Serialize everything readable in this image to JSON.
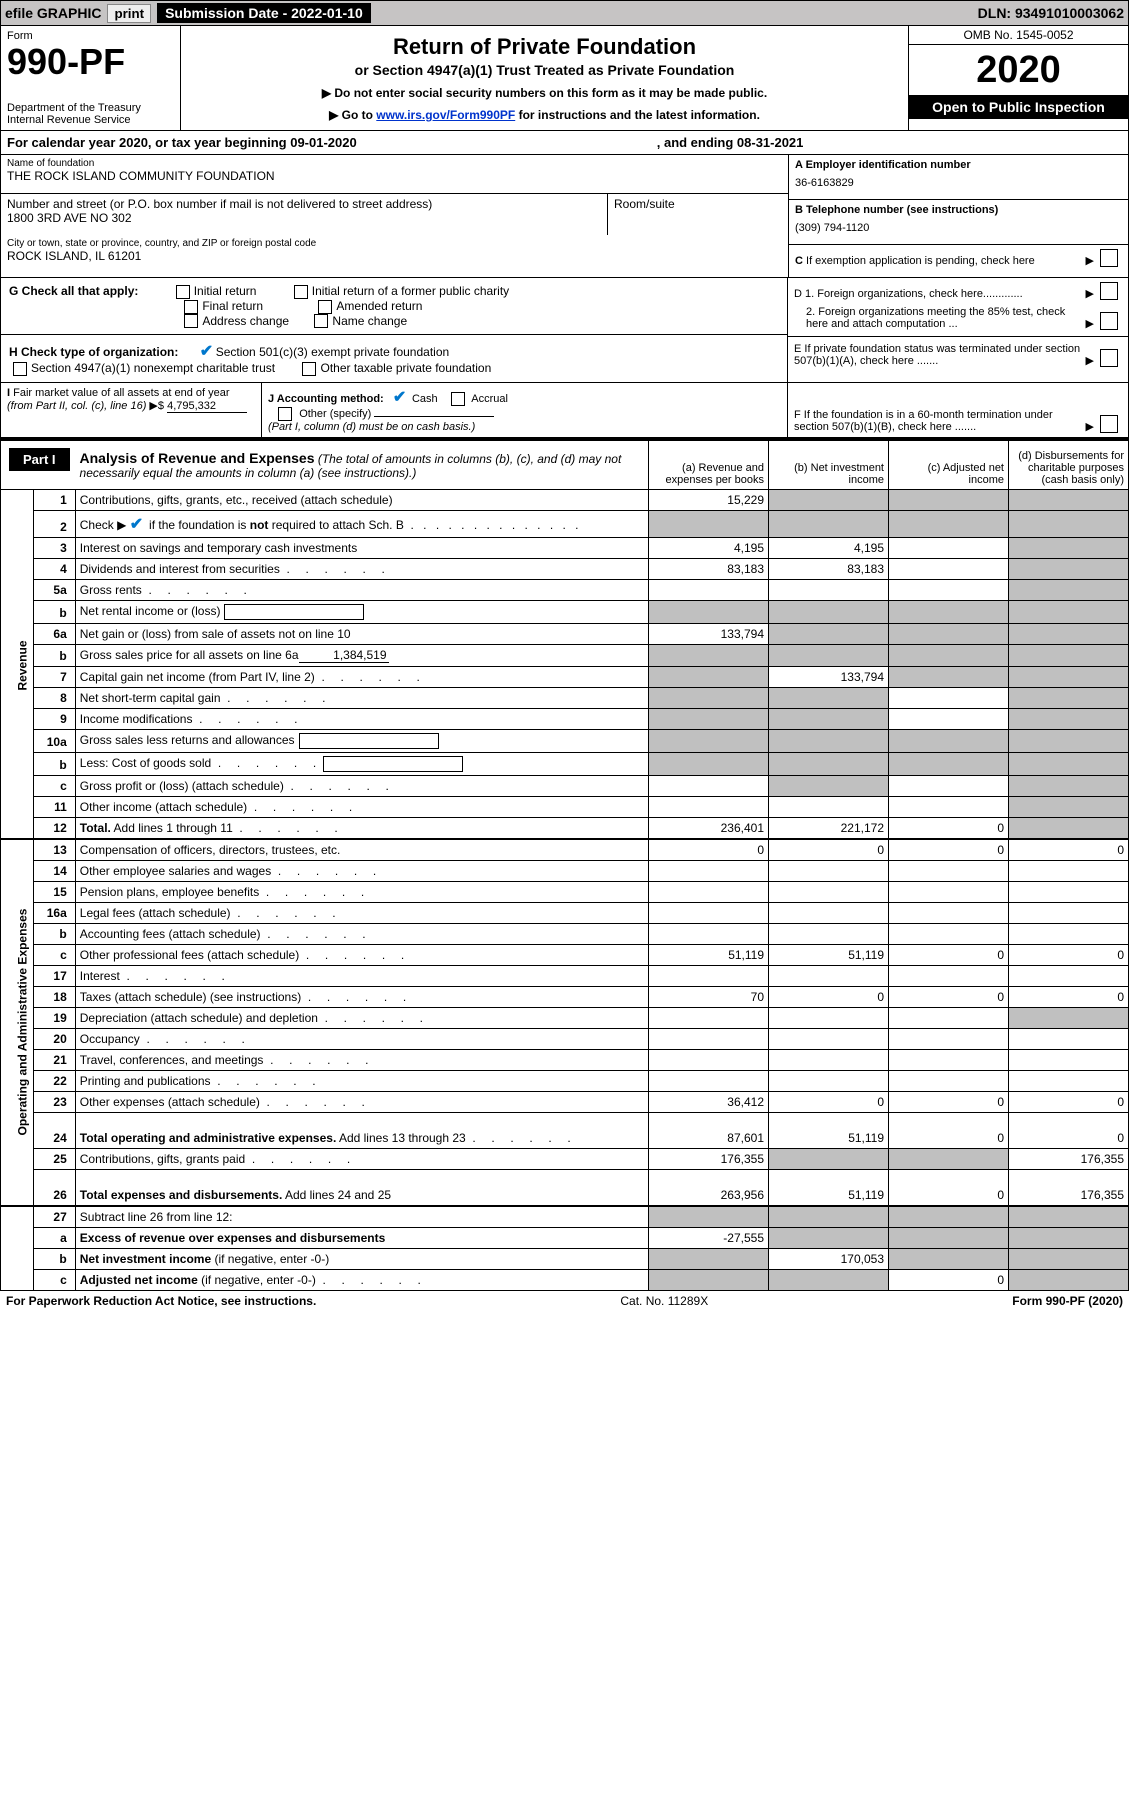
{
  "topbar": {
    "efile": "efile GRAPHIC",
    "print": "print",
    "submission": "Submission Date - 2022-01-10",
    "dln": "DLN: 93491010003062"
  },
  "header": {
    "form_label": "Form",
    "form_number": "990-PF",
    "dept": "Department of the Treasury\nInternal Revenue Service",
    "title": "Return of Private Foundation",
    "subtitle": "or Section 4947(a)(1) Trust Treated as Private Foundation",
    "instr1": "▶ Do not enter social security numbers on this form as it may be made public.",
    "instr2_pre": "▶ Go to ",
    "instr2_link": "www.irs.gov/Form990PF",
    "instr2_post": " for instructions and the latest information.",
    "omb": "OMB No. 1545-0052",
    "year": "2020",
    "open": "Open to Public Inspection"
  },
  "calyear": {
    "text1": "For calendar year 2020, or tax year beginning 09-01-2020",
    "text2": ", and ending 08-31-2021"
  },
  "identity": {
    "name_label": "Name of foundation",
    "name": "THE ROCK ISLAND COMMUNITY FOUNDATION",
    "addr_label": "Number and street (or P.O. box number if mail is not delivered to street address)",
    "addr": "1800 3RD AVE NO 302",
    "room_label": "Room/suite",
    "city_label": "City or town, state or province, country, and ZIP or foreign postal code",
    "city": "ROCK ISLAND, IL  61201",
    "ein_label": "A Employer identification number",
    "ein": "36-6163829",
    "phone_label": "B Telephone number (see instructions)",
    "phone": "(309) 794-1120",
    "c_label": "C If exemption application is pending, check here",
    "d1": "D 1. Foreign organizations, check here.............",
    "d2": "2. Foreign organizations meeting the 85% test, check here and attach computation ...",
    "e": "E  If private foundation status was terminated under section 507(b)(1)(A), check here .......",
    "f": "F  If the foundation is in a 60-month termination under section 507(b)(1)(B), check here ......."
  },
  "checks": {
    "g_label": "G Check all that apply:",
    "g_opts": [
      "Initial return",
      "Initial return of a former public charity",
      "Final return",
      "Amended return",
      "Address change",
      "Name change"
    ],
    "h_label": "H Check type of organization:",
    "h_opts": [
      "Section 501(c)(3) exempt private foundation",
      "Section 4947(a)(1) nonexempt charitable trust",
      "Other taxable private foundation"
    ],
    "i_label": "I Fair market value of all assets at end of year (from Part II, col. (c), line 16) ▶$",
    "i_val": "4,795,332",
    "j_label": "J Accounting method:",
    "j_cash": "Cash",
    "j_accrual": "Accrual",
    "j_other": "Other (specify)",
    "j_note": "(Part I, column (d) must be on cash basis.)"
  },
  "part1": {
    "tab": "Part I",
    "title_bold": "Analysis of Revenue and Expenses",
    "title_it": " (The total of amounts in columns (b), (c), and (d) may not necessarily equal the amounts in column (a) (see instructions).)",
    "col_a": "(a)  Revenue and expenses per books",
    "col_b": "(b)  Net investment income",
    "col_c": "(c)  Adjusted net income",
    "col_d": "(d)  Disbursements for charitable purposes (cash basis only)",
    "vlabel_rev": "Revenue",
    "vlabel_exp": "Operating and Administrative Expenses"
  },
  "rows": [
    {
      "n": "1",
      "label": "Contributions, gifts, grants, etc., received (attach schedule)",
      "a": "15,229",
      "b": "",
      "c": "",
      "d": "",
      "grey": [
        "b",
        "c",
        "d"
      ],
      "sect": "rev"
    },
    {
      "n": "2",
      "label": "Check ▶ ✔ if the foundation is <b>not</b> required to attach Sch. B",
      "dots": true,
      "a": "",
      "b": "",
      "c": "",
      "d": "",
      "grey": [
        "a",
        "b",
        "c",
        "d"
      ],
      "sect": "rev",
      "hasCheck": true
    },
    {
      "n": "3",
      "label": "Interest on savings and temporary cash investments",
      "a": "4,195",
      "b": "4,195",
      "c": "",
      "d": "",
      "grey": [
        "d"
      ],
      "sect": "rev"
    },
    {
      "n": "4",
      "label": "Dividends and interest from securities",
      "dots": true,
      "a": "83,183",
      "b": "83,183",
      "c": "",
      "d": "",
      "grey": [
        "d"
      ],
      "sect": "rev"
    },
    {
      "n": "5a",
      "label": "Gross rents",
      "dots": true,
      "a": "",
      "b": "",
      "c": "",
      "d": "",
      "grey": [
        "d"
      ],
      "sect": "rev"
    },
    {
      "n": "b",
      "label": "Net rental income or (loss)",
      "inlineBox": true,
      "a": "",
      "b": "",
      "c": "",
      "d": "",
      "grey": [
        "a",
        "b",
        "c",
        "d"
      ],
      "sect": "rev"
    },
    {
      "n": "6a",
      "label": "Net gain or (loss) from sale of assets not on line 10",
      "a": "133,794",
      "b": "",
      "c": "",
      "d": "",
      "grey": [
        "b",
        "c",
        "d"
      ],
      "sect": "rev"
    },
    {
      "n": "b",
      "label": "Gross sales price for all assets on line 6a",
      "inlineVal": "1,384,519",
      "a": "",
      "b": "",
      "c": "",
      "d": "",
      "grey": [
        "a",
        "b",
        "c",
        "d"
      ],
      "sect": "rev"
    },
    {
      "n": "7",
      "label": "Capital gain net income (from Part IV, line 2)",
      "dots": true,
      "a": "",
      "b": "133,794",
      "c": "",
      "d": "",
      "grey": [
        "a",
        "c",
        "d"
      ],
      "sect": "rev"
    },
    {
      "n": "8",
      "label": "Net short-term capital gain",
      "dots": true,
      "a": "",
      "b": "",
      "c": "",
      "d": "",
      "grey": [
        "a",
        "b",
        "d"
      ],
      "sect": "rev"
    },
    {
      "n": "9",
      "label": "Income modifications",
      "dots": true,
      "a": "",
      "b": "",
      "c": "",
      "d": "",
      "grey": [
        "a",
        "b",
        "d"
      ],
      "sect": "rev"
    },
    {
      "n": "10a",
      "label": "Gross sales less returns and allowances",
      "inlineBox": true,
      "a": "",
      "b": "",
      "c": "",
      "d": "",
      "grey": [
        "a",
        "b",
        "c",
        "d"
      ],
      "sect": "rev"
    },
    {
      "n": "b",
      "label": "Less: Cost of goods sold",
      "dots": true,
      "inlineBox": true,
      "a": "",
      "b": "",
      "c": "",
      "d": "",
      "grey": [
        "a",
        "b",
        "c",
        "d"
      ],
      "sect": "rev"
    },
    {
      "n": "c",
      "label": "Gross profit or (loss) (attach schedule)",
      "dots": true,
      "a": "",
      "b": "",
      "c": "",
      "d": "",
      "grey": [
        "b",
        "d"
      ],
      "sect": "rev"
    },
    {
      "n": "11",
      "label": "Other income (attach schedule)",
      "dots": true,
      "a": "",
      "b": "",
      "c": "",
      "d": "",
      "grey": [
        "d"
      ],
      "sect": "rev"
    },
    {
      "n": "12",
      "label": "<b>Total.</b> Add lines 1 through 11",
      "dots": true,
      "a": "236,401",
      "b": "221,172",
      "c": "0",
      "d": "",
      "grey": [
        "d"
      ],
      "sect": "rev",
      "thick": true
    },
    {
      "n": "13",
      "label": "Compensation of officers, directors, trustees, etc.",
      "a": "0",
      "b": "0",
      "c": "0",
      "d": "0",
      "sect": "exp"
    },
    {
      "n": "14",
      "label": "Other employee salaries and wages",
      "dots": true,
      "a": "",
      "b": "",
      "c": "",
      "d": "",
      "sect": "exp"
    },
    {
      "n": "15",
      "label": "Pension plans, employee benefits",
      "dots": true,
      "a": "",
      "b": "",
      "c": "",
      "d": "",
      "sect": "exp"
    },
    {
      "n": "16a",
      "label": "Legal fees (attach schedule)",
      "dots": true,
      "a": "",
      "b": "",
      "c": "",
      "d": "",
      "sect": "exp"
    },
    {
      "n": "b",
      "label": "Accounting fees (attach schedule)",
      "dots": true,
      "a": "",
      "b": "",
      "c": "",
      "d": "",
      "sect": "exp"
    },
    {
      "n": "c",
      "label": "Other professional fees (attach schedule)",
      "dots": true,
      "a": "51,119",
      "b": "51,119",
      "c": "0",
      "d": "0",
      "sect": "exp"
    },
    {
      "n": "17",
      "label": "Interest",
      "dots": true,
      "a": "",
      "b": "",
      "c": "",
      "d": "",
      "sect": "exp"
    },
    {
      "n": "18",
      "label": "Taxes (attach schedule) (see instructions)",
      "dots": true,
      "a": "70",
      "b": "0",
      "c": "0",
      "d": "0",
      "sect": "exp"
    },
    {
      "n": "19",
      "label": "Depreciation (attach schedule) and depletion",
      "dots": true,
      "a": "",
      "b": "",
      "c": "",
      "d": "",
      "grey": [
        "d"
      ],
      "sect": "exp"
    },
    {
      "n": "20",
      "label": "Occupancy",
      "dots": true,
      "a": "",
      "b": "",
      "c": "",
      "d": "",
      "sect": "exp"
    },
    {
      "n": "21",
      "label": "Travel, conferences, and meetings",
      "dots": true,
      "a": "",
      "b": "",
      "c": "",
      "d": "",
      "sect": "exp"
    },
    {
      "n": "22",
      "label": "Printing and publications",
      "dots": true,
      "a": "",
      "b": "",
      "c": "",
      "d": "",
      "sect": "exp"
    },
    {
      "n": "23",
      "label": "Other expenses (attach schedule)",
      "dots": true,
      "a": "36,412",
      "b": "0",
      "c": "0",
      "d": "0",
      "sect": "exp"
    },
    {
      "n": "24",
      "label": "<b>Total operating and administrative expenses.</b> Add lines 13 through 23",
      "dots": true,
      "a": "87,601",
      "b": "51,119",
      "c": "0",
      "d": "0",
      "sect": "exp",
      "tall": true
    },
    {
      "n": "25",
      "label": "Contributions, gifts, grants paid",
      "dots": true,
      "a": "176,355",
      "b": "",
      "c": "",
      "d": "176,355",
      "grey": [
        "b",
        "c"
      ],
      "sect": "exp"
    },
    {
      "n": "26",
      "label": "<b>Total expenses and disbursements.</b> Add lines 24 and 25",
      "a": "263,956",
      "b": "51,119",
      "c": "0",
      "d": "176,355",
      "sect": "exp",
      "tall": true,
      "thick": true
    },
    {
      "n": "27",
      "label": "Subtract line 26 from line 12:",
      "a": "",
      "b": "",
      "c": "",
      "d": "",
      "grey": [
        "a",
        "b",
        "c",
        "d"
      ],
      "sect": "none"
    },
    {
      "n": "a",
      "label": "<b>Excess of revenue over expenses and disbursements</b>",
      "a": "-27,555",
      "b": "",
      "c": "",
      "d": "",
      "grey": [
        "b",
        "c",
        "d"
      ],
      "sect": "none"
    },
    {
      "n": "b",
      "label": "<b>Net investment income</b> (if negative, enter -0-)",
      "a": "",
      "b": "170,053",
      "c": "",
      "d": "",
      "grey": [
        "a",
        "c",
        "d"
      ],
      "sect": "none"
    },
    {
      "n": "c",
      "label": "<b>Adjusted net income</b> (if negative, enter -0-)",
      "dots": true,
      "a": "",
      "b": "",
      "c": "0",
      "d": "",
      "grey": [
        "a",
        "b",
        "d"
      ],
      "sect": "none"
    }
  ],
  "footer": {
    "left": "For Paperwork Reduction Act Notice, see instructions.",
    "mid": "Cat. No. 11289X",
    "right": "Form 990-PF (2020)"
  },
  "colors": {
    "link": "#0033cc",
    "grey": "#c0c0c0",
    "topbar": "#c6c4c4",
    "check": "#0077cc"
  }
}
